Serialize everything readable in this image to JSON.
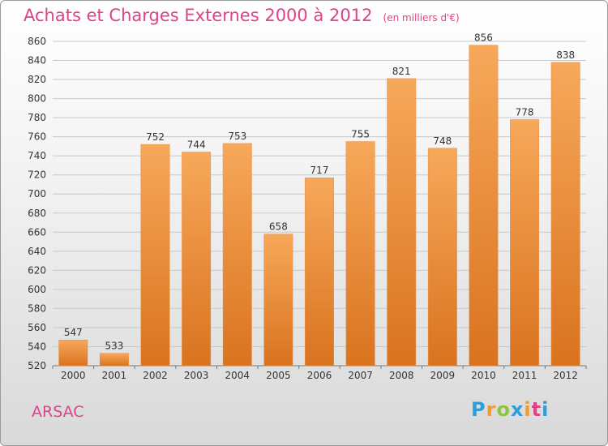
{
  "title": "Achats et Charges Externes 2000 à 2012",
  "unit": "(en milliers d'€)",
  "city": "ARSAC",
  "logo": {
    "text": "Proxiti",
    "letters": [
      "P",
      "r",
      "o",
      "x",
      "i",
      "t",
      "i"
    ],
    "colors": [
      "#2f9ed8",
      "#f29a2e",
      "#8cc63f",
      "#2f9ed8",
      "#f29a2e",
      "#e0428a",
      "#2f9ed8"
    ]
  },
  "colors": {
    "bar_top": "#f7a85a",
    "bar_bottom": "#d9731f",
    "title": "#e0428a",
    "grid": "#c8c8c8"
  },
  "chart_data": {
    "type": "bar",
    "categories": [
      "2000",
      "2001",
      "2002",
      "2003",
      "2004",
      "2005",
      "2006",
      "2007",
      "2008",
      "2009",
      "2010",
      "2011",
      "2012"
    ],
    "values": [
      547,
      533,
      752,
      744,
      753,
      658,
      717,
      755,
      821,
      748,
      856,
      778,
      838
    ],
    "ylim": [
      520,
      860
    ],
    "yticks": [
      520,
      540,
      560,
      580,
      600,
      620,
      640,
      660,
      680,
      700,
      720,
      740,
      760,
      780,
      800,
      820,
      840,
      860
    ],
    "grid": true
  }
}
